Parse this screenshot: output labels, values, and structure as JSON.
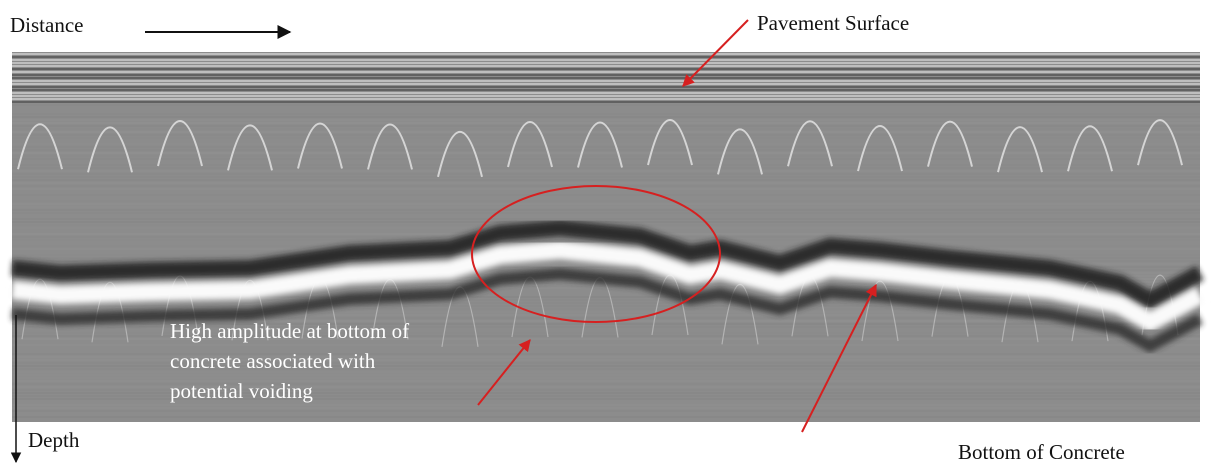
{
  "labels": {
    "distance": "Distance",
    "pavement_surface": "Pavement Surface",
    "annotation": [
      "High amplitude at bottom of",
      "concrete associated with",
      "potential voiding"
    ],
    "depth": "Depth",
    "bottom_of_concrete": "Bottom of Concrete"
  }
}
